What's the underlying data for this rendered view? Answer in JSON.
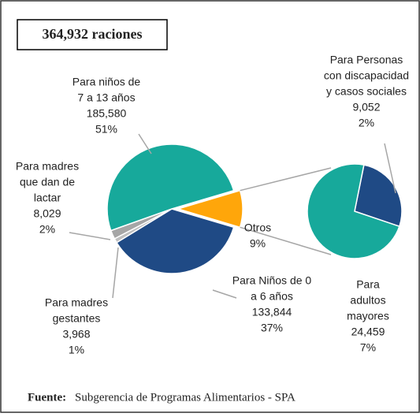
{
  "chart_data": {
    "type": "pie",
    "title": "364,932 raciones",
    "source_label": "Fuente:",
    "source": "Subgerencia de Programas Alimentarios - SPA",
    "slices": [
      {
        "label": [
          "Otros"
        ],
        "value": null,
        "percent_label": "9%",
        "color": "#ffa60a"
      },
      {
        "label": [
          "Para Niños de 0",
          "a 6 años"
        ],
        "value": 133844,
        "value_label": "133,844",
        "percent_label": "37%",
        "color": "#1f4a85"
      },
      {
        "label": [
          "Para madres",
          "gestantes"
        ],
        "value": 3968,
        "value_label": "3,968",
        "percent_label": "1%",
        "color": "#bfbfbf"
      },
      {
        "label": [
          "Para madres",
          "que dan de",
          "lactar"
        ],
        "value": 8029,
        "value_label": "8,029",
        "percent_label": "2%",
        "color": "#a6a6a6"
      },
      {
        "label": [
          "Para niños de",
          "7 a 13 años"
        ],
        "value": 185580,
        "value_label": "185,580",
        "percent_label": "51%",
        "color": "#17a99b"
      }
    ],
    "secondary": {
      "slices": [
        {
          "label": [
            "Para Personas",
            "con discapacidad",
            "y casos sociales"
          ],
          "value": 9052,
          "value_label": "9,052",
          "percent_label": "2%",
          "color": "#1f4a85"
        },
        {
          "label": [
            "Para",
            "adultos",
            "mayores"
          ],
          "value": 24459,
          "value_label": "24,459",
          "percent_label": "7%",
          "color": "#17a99b"
        }
      ]
    }
  }
}
